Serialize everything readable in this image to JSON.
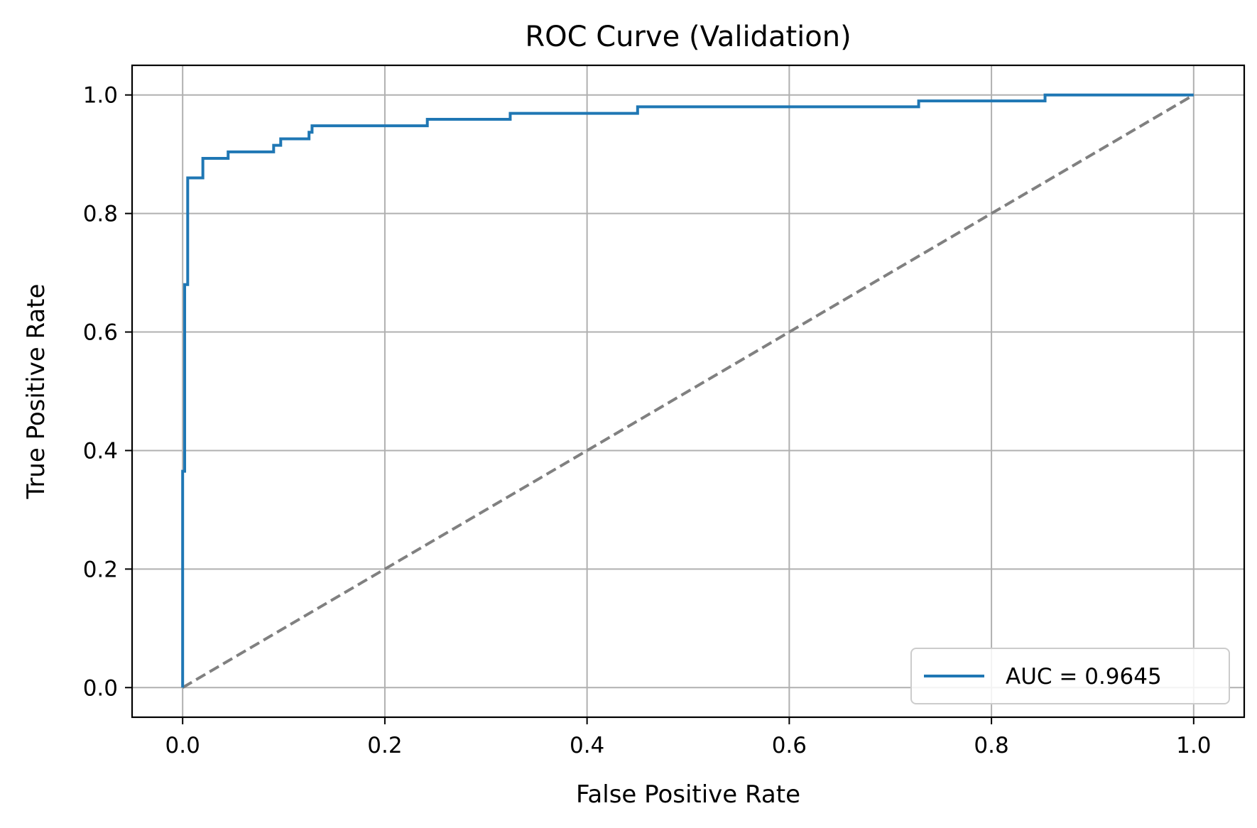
{
  "chart_data": {
    "type": "line",
    "title": "ROC Curve (Validation)",
    "xlabel": "False Positive Rate",
    "ylabel": "True Positive Rate",
    "xlim": [
      -0.05,
      1.05
    ],
    "ylim": [
      -0.05,
      1.05
    ],
    "xticks": [
      0.0,
      0.2,
      0.4,
      0.6,
      0.8,
      1.0
    ],
    "yticks": [
      0.0,
      0.2,
      0.4,
      0.6,
      0.8,
      1.0
    ],
    "xtick_labels": [
      "0.0",
      "0.2",
      "0.4",
      "0.6",
      "0.8",
      "1.0"
    ],
    "ytick_labels": [
      "0.0",
      "0.2",
      "0.4",
      "0.6",
      "0.8",
      "1.0"
    ],
    "grid": true,
    "legend_position": "lower-right",
    "series": [
      {
        "name": "AUC = 0.9645",
        "color": "#1f77b4",
        "style": "solid",
        "x": [
          0.0,
          0.0,
          0.002,
          0.002,
          0.005,
          0.005,
          0.02,
          0.02,
          0.045,
          0.045,
          0.09,
          0.09,
          0.097,
          0.097,
          0.125,
          0.125,
          0.128,
          0.128,
          0.242,
          0.242,
          0.324,
          0.324,
          0.45,
          0.45,
          0.728,
          0.728,
          0.853,
          0.853,
          1.0
        ],
        "y": [
          0.0,
          0.365,
          0.365,
          0.68,
          0.68,
          0.86,
          0.86,
          0.893,
          0.893,
          0.904,
          0.904,
          0.915,
          0.915,
          0.926,
          0.926,
          0.937,
          0.937,
          0.948,
          0.948,
          0.959,
          0.959,
          0.969,
          0.969,
          0.98,
          0.98,
          0.99,
          0.99,
          1.0,
          1.0
        ]
      },
      {
        "name": "",
        "color": "#808080",
        "style": "dashed",
        "x": [
          0.0,
          1.0
        ],
        "y": [
          0.0,
          1.0
        ]
      }
    ]
  }
}
